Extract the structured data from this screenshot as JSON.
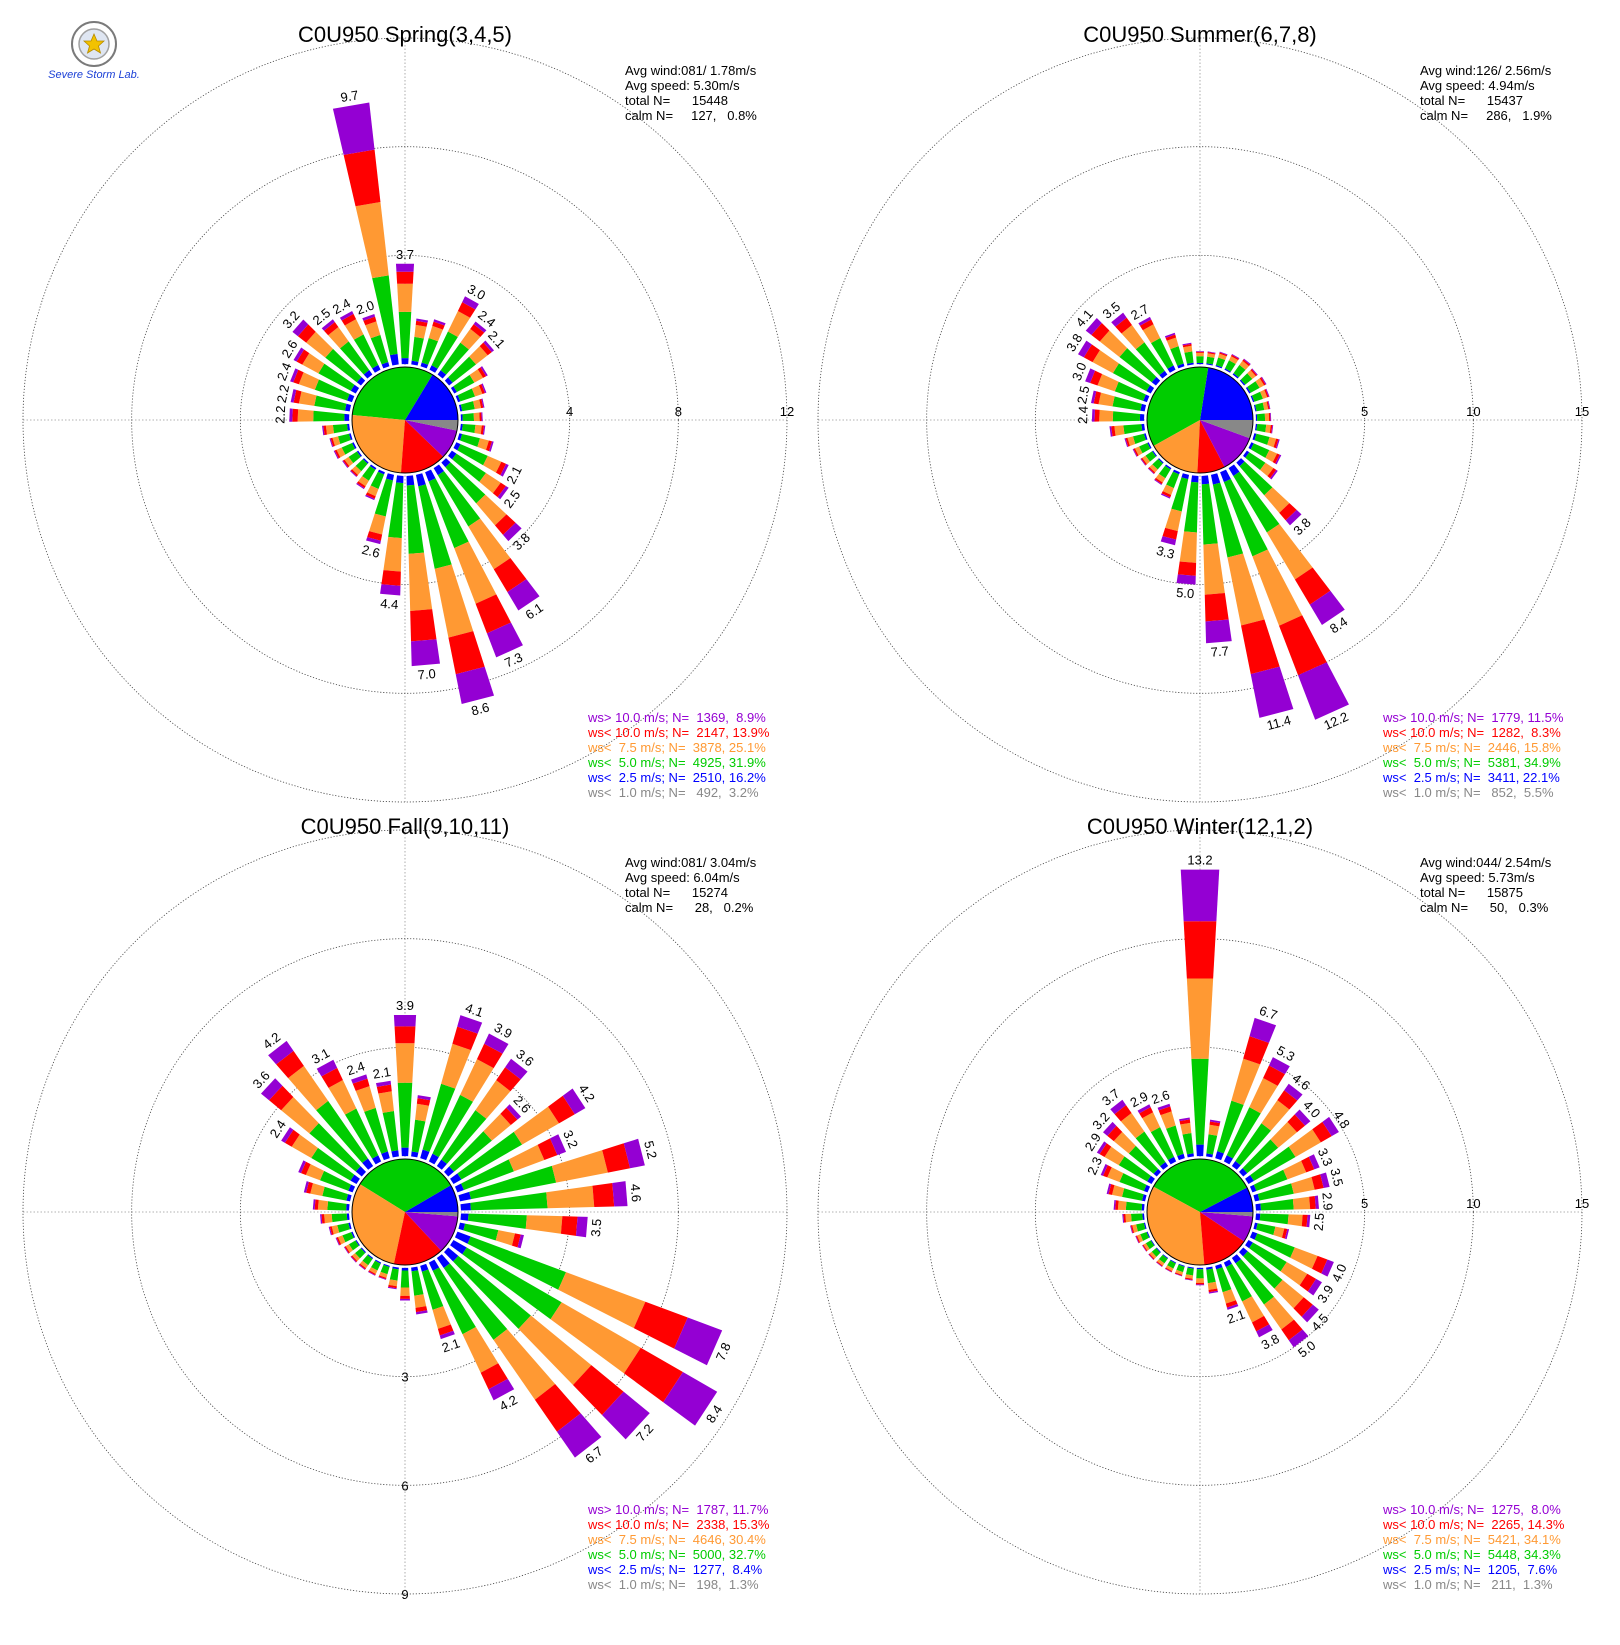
{
  "logo": {
    "text": "Severe Storm Lab."
  },
  "colors": {
    "ws_gt10": "#9400d3",
    "ws_lt10": "#ff0000",
    "ws_lt7_5": "#ff9933",
    "ws_lt5": "#00cc00",
    "ws_lt2_5": "#0000ff",
    "ws_lt1": "#888888"
  },
  "chart_data": [
    {
      "type": "wind-rose",
      "title": "C0U950 Spring(3,4,5)",
      "rings": [
        4,
        8,
        12
      ],
      "ring_labels": [
        "4",
        "8",
        "12"
      ],
      "ring_label_position": "east",
      "info": {
        "avg_wind": "Avg wind:081/ 1.78m/s",
        "avg_speed": "Avg speed: 5.30m/s",
        "total": "total N=      15448",
        "calm": "calm N=     127,   0.8%"
      },
      "legend": [
        {
          "text": "ws> 10.0 m/s; N=  1369,  8.9%",
          "color": "#9400d3"
        },
        {
          "text": "ws< 10.0 m/s; N=  2147, 13.9%",
          "color": "#ff0000"
        },
        {
          "text": "ws<  7.5 m/s; N=  3878, 25.1%",
          "color": "#ff9933"
        },
        {
          "text": "ws<  5.0 m/s; N=  4925, 31.9%",
          "color": "#00cc00"
        },
        {
          "text": "ws<  2.5 m/s; N=  2510, 16.2%",
          "color": "#0000ff"
        },
        {
          "text": "ws<  1.0 m/s; N=   492,  3.2%",
          "color": "#888888"
        }
      ],
      "center_pie": [
        16.2,
        31.9,
        25.1,
        13.9,
        8.9,
        3.2
      ],
      "totals": [
        3.7,
        1.7,
        1.8,
        3.0,
        2.4,
        2.1,
        1.4,
        1.1,
        0.9,
        0.8,
        0.9,
        1.3,
        2.1,
        2.5,
        3.8,
        6.1,
        7.3,
        8.6,
        7.0,
        4.4,
        2.6,
        1.1,
        0.9,
        0.7,
        0.7,
        0.8,
        0.8,
        1.0,
        2.2,
        2.2,
        2.4,
        2.6,
        3.2,
        2.5,
        2.4,
        2.0,
        9.7
      ],
      "labels": [
        {
          "i": 0,
          "text": "3.7"
        },
        {
          "i": 3,
          "text": "3.0"
        },
        {
          "i": 4,
          "text": "2.4"
        },
        {
          "i": 5,
          "text": "2.1"
        },
        {
          "i": 12,
          "text": "2.1"
        },
        {
          "i": 13,
          "text": "2.5"
        },
        {
          "i": 14,
          "text": "3.8"
        },
        {
          "i": 15,
          "text": "6.1"
        },
        {
          "i": 16,
          "text": "7.3"
        },
        {
          "i": 17,
          "text": "8.6"
        },
        {
          "i": 18,
          "text": "7.0"
        },
        {
          "i": 19,
          "text": "4.4"
        },
        {
          "i": 20,
          "text": "2.6"
        },
        {
          "i": 28,
          "text": "2.2"
        },
        {
          "i": 29,
          "text": "2.2"
        },
        {
          "i": 30,
          "text": "2.4"
        },
        {
          "i": 31,
          "text": "2.6"
        },
        {
          "i": 32,
          "text": "3.2"
        },
        {
          "i": 33,
          "text": "2.5"
        },
        {
          "i": 34,
          "text": "2.4"
        },
        {
          "i": 35,
          "text": "2.0"
        },
        {
          "i": 36,
          "text": "9.7"
        }
      ]
    },
    {
      "type": "wind-rose",
      "title": "C0U950 Summer(6,7,8)",
      "rings": [
        5,
        10,
        15
      ],
      "ring_labels": [
        "5",
        "10",
        "15"
      ],
      "ring_label_position": "east",
      "info": {
        "avg_wind": "Avg wind:126/ 2.56m/s",
        "avg_speed": "Avg speed: 4.94m/s",
        "total": "total N=      15437",
        "calm": "calm N=     286,   1.9%"
      },
      "legend": [
        {
          "text": "ws> 10.0 m/s; N=  1779, 11.5%",
          "color": "#9400d3"
        },
        {
          "text": "ws< 10.0 m/s; N=  1282,  8.3%",
          "color": "#ff0000"
        },
        {
          "text": "ws<  7.5 m/s; N=  2446, 15.8%",
          "color": "#ff9933"
        },
        {
          "text": "ws<  5.0 m/s; N=  5381, 34.9%",
          "color": "#00cc00"
        },
        {
          "text": "ws<  2.5 m/s; N=  3411, 22.1%",
          "color": "#0000ff"
        },
        {
          "text": "ws<  1.0 m/s; N=   852,  5.5%",
          "color": "#888888"
        }
      ],
      "center_pie": [
        22.1,
        34.9,
        15.8,
        8.3,
        11.5,
        5.5
      ],
      "totals": [
        0.6,
        0.6,
        0.7,
        0.8,
        0.9,
        0.8,
        0.9,
        0.8,
        0.7,
        0.7,
        0.8,
        1.2,
        1.5,
        1.7,
        3.8,
        8.4,
        12.2,
        11.4,
        7.7,
        5.0,
        3.3,
        1.3,
        0.9,
        0.7,
        0.7,
        0.8,
        1.0,
        1.6,
        2.4,
        2.5,
        3.0,
        3.8,
        4.1,
        3.5,
        2.7,
        1.6,
        1.0
      ],
      "labels": [
        {
          "i": 14,
          "text": "3.8"
        },
        {
          "i": 15,
          "text": "8.4"
        },
        {
          "i": 16,
          "text": "12.2"
        },
        {
          "i": 17,
          "text": "11.4"
        },
        {
          "i": 18,
          "text": "7.7"
        },
        {
          "i": 19,
          "text": "5.0"
        },
        {
          "i": 20,
          "text": "3.3"
        },
        {
          "i": 28,
          "text": "2.4"
        },
        {
          "i": 29,
          "text": "2.5"
        },
        {
          "i": 30,
          "text": "3.0"
        },
        {
          "i": 31,
          "text": "3.8"
        },
        {
          "i": 32,
          "text": "4.1"
        },
        {
          "i": 33,
          "text": "3.5"
        },
        {
          "i": 34,
          "text": "2.7"
        }
      ]
    },
    {
      "type": "wind-rose",
      "title": "C0U950 Fall(9,10,11)",
      "rings": [
        3,
        6,
        9
      ],
      "ring_labels": [
        "3",
        "6",
        "9"
      ],
      "ring_label_position": "south",
      "info": {
        "avg_wind": "Avg wind:081/ 3.04m/s",
        "avg_speed": "Avg speed: 6.04m/s",
        "total": "total N=      15274",
        "calm": "calm N=      28,   0.2%"
      },
      "legend": [
        {
          "text": "ws> 10.0 m/s; N=  1787, 11.7%",
          "color": "#9400d3"
        },
        {
          "text": "ws< 10.0 m/s; N=  2338, 15.3%",
          "color": "#ff0000"
        },
        {
          "text": "ws<  7.5 m/s; N=  4646, 30.4%",
          "color": "#ff9933"
        },
        {
          "text": "ws<  5.0 m/s; N=  5000, 32.7%",
          "color": "#00cc00"
        },
        {
          "text": "ws<  2.5 m/s; N=  1277,  8.4%",
          "color": "#0000ff"
        },
        {
          "text": "ws<  1.0 m/s; N=   198,  1.3%",
          "color": "#888888"
        }
      ],
      "center_pie": [
        8.4,
        32.7,
        30.4,
        15.3,
        11.7,
        1.3
      ],
      "totals": [
        3.9,
        1.7,
        4.1,
        3.9,
        3.6,
        2.6,
        4.2,
        3.2,
        5.2,
        4.6,
        3.5,
        1.8,
        7.8,
        8.4,
        7.2,
        6.7,
        4.2,
        2.1,
        1.3,
        0.9,
        0.6,
        0.4,
        0.4,
        0.4,
        0.4,
        0.4,
        0.5,
        0.6,
        0.8,
        1.0,
        1.3,
        1.6,
        2.4,
        3.6,
        4.2,
        3.1,
        2.4,
        2.1
      ],
      "labels": [
        {
          "i": 0,
          "text": "3.9"
        },
        {
          "i": 2,
          "text": "4.1"
        },
        {
          "i": 3,
          "text": "3.9"
        },
        {
          "i": 4,
          "text": "3.6"
        },
        {
          "i": 5,
          "text": "2.6"
        },
        {
          "i": 6,
          "text": "4.2"
        },
        {
          "i": 7,
          "text": "3.2"
        },
        {
          "i": 8,
          "text": "5.2"
        },
        {
          "i": 9,
          "text": "4.6"
        },
        {
          "i": 10,
          "text": "3.5"
        },
        {
          "i": 12,
          "text": "7.8"
        },
        {
          "i": 13,
          "text": "8.4"
        },
        {
          "i": 14,
          "text": "7.2"
        },
        {
          "i": 15,
          "text": "6.7"
        },
        {
          "i": 16,
          "text": "4.2"
        },
        {
          "i": 17,
          "text": "2.1"
        },
        {
          "i": 32,
          "text": "2.4"
        },
        {
          "i": 33,
          "text": "3.6"
        },
        {
          "i": 34,
          "text": "4.2"
        },
        {
          "i": 35,
          "text": "3.1"
        },
        {
          "i": 36,
          "text": "2.4"
        },
        {
          "i": 37,
          "text": "2.1"
        }
      ]
    },
    {
      "type": "wind-rose",
      "title": "C0U950 Winter(12,1,2)",
      "rings": [
        5,
        10,
        15
      ],
      "ring_labels": [
        "5",
        "10",
        "15"
      ],
      "ring_label_position": "east",
      "info": {
        "avg_wind": "Avg wind:044/ 2.54m/s",
        "avg_speed": "Avg speed: 5.73m/s",
        "total": "total N=      15875",
        "calm": "calm N=      50,   0.3%"
      },
      "legend": [
        {
          "text": "ws> 10.0 m/s; N=  1275,  8.0%",
          "color": "#9400d3"
        },
        {
          "text": "ws< 10.0 m/s; N=  2265, 14.3%",
          "color": "#ff0000"
        },
        {
          "text": "ws<  7.5 m/s; N=  5421, 34.1%",
          "color": "#ff9933"
        },
        {
          "text": "ws<  5.0 m/s; N=  5448, 34.3%",
          "color": "#00cc00"
        },
        {
          "text": "ws<  2.5 m/s; N=  1205,  7.6%",
          "color": "#0000ff"
        },
        {
          "text": "ws<  1.0 m/s; N=   211,  1.3%",
          "color": "#888888"
        }
      ],
      "center_pie": [
        7.6,
        34.3,
        34.1,
        14.3,
        8.0,
        1.3
      ],
      "totals": [
        13.2,
        1.7,
        6.7,
        5.3,
        4.6,
        4.0,
        4.8,
        3.3,
        3.5,
        2.9,
        2.5,
        1.6,
        4.0,
        3.9,
        4.5,
        5.0,
        3.8,
        2.1,
        1.2,
        0.8,
        0.6,
        0.5,
        0.5,
        0.5,
        0.5,
        0.5,
        0.6,
        0.7,
        1.0,
        1.4,
        1.8,
        2.3,
        2.9,
        3.2,
        3.7,
        2.9,
        2.6,
        1.8
      ],
      "labels": [
        {
          "i": 0,
          "text": "13.2"
        },
        {
          "i": 2,
          "text": "6.7"
        },
        {
          "i": 3,
          "text": "5.3"
        },
        {
          "i": 4,
          "text": "4.6"
        },
        {
          "i": 5,
          "text": "4.0"
        },
        {
          "i": 6,
          "text": "4.8"
        },
        {
          "i": 7,
          "text": "3.3"
        },
        {
          "i": 8,
          "text": "3.5"
        },
        {
          "i": 9,
          "text": "2.9"
        },
        {
          "i": 10,
          "text": "2.5"
        },
        {
          "i": 12,
          "text": "4.0"
        },
        {
          "i": 13,
          "text": "3.9"
        },
        {
          "i": 14,
          "text": "4.5"
        },
        {
          "i": 15,
          "text": "5.0"
        },
        {
          "i": 16,
          "text": "3.8"
        },
        {
          "i": 17,
          "text": "2.1"
        },
        {
          "i": 31,
          "text": "2.3"
        },
        {
          "i": 32,
          "text": "2.9"
        },
        {
          "i": 33,
          "text": "3.2"
        },
        {
          "i": 34,
          "text": "3.7"
        },
        {
          "i": 35,
          "text": "2.9"
        },
        {
          "i": 36,
          "text": "2.6"
        }
      ]
    }
  ]
}
